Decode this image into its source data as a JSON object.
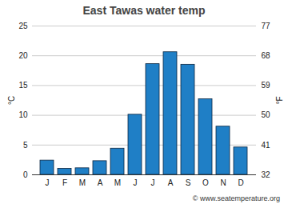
{
  "chart_data": {
    "type": "bar",
    "title": "East Tawas water temp",
    "categories": [
      "J",
      "F",
      "M",
      "A",
      "M",
      "J",
      "J",
      "A",
      "S",
      "O",
      "N",
      "D"
    ],
    "values": [
      2.4,
      1.0,
      1.1,
      2.3,
      4.4,
      10.1,
      18.6,
      20.6,
      18.5,
      12.7,
      8.1,
      4.6
    ],
    "color": "#1f7fc6",
    "y_label": "°C",
    "ylim": [
      0,
      25
    ],
    "yticks": [
      0,
      5,
      10,
      15,
      20,
      25
    ],
    "y2_label": "°F",
    "y2lim": [
      32,
      77
    ],
    "y2ticks": [
      32,
      41,
      50,
      59,
      68,
      77
    ],
    "grid": true,
    "caption": "© www.seatemperature.org"
  }
}
